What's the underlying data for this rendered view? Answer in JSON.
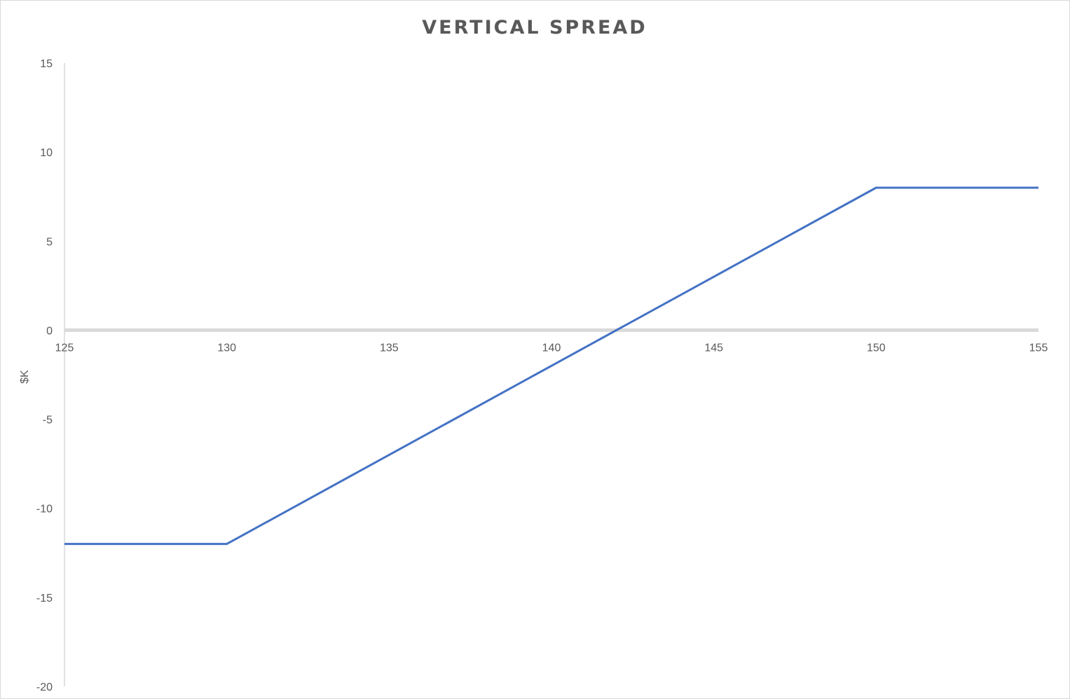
{
  "chart_data": {
    "type": "line",
    "title": "VERTICAL SPREAD",
    "xlabel": "",
    "ylabel": "$K",
    "xlim": [
      125,
      155
    ],
    "ylim": [
      -20,
      15
    ],
    "x_ticks": [
      "125",
      "130",
      "135",
      "140",
      "145",
      "150",
      "155"
    ],
    "y_ticks": [
      "15",
      "10",
      "5",
      "0",
      "-5",
      "-10",
      "-15",
      "-20"
    ],
    "grid": false,
    "legend": "none",
    "series": [
      {
        "x": [
          125,
          130,
          150,
          155
        ],
        "y": [
          -12,
          -12,
          8,
          8
        ],
        "color": "#4472c4"
      }
    ],
    "colors": {
      "line": "#4472c4",
      "zero_axis": "#d9d9d9",
      "value_axis": "#d9d9d9",
      "text": "#595959"
    }
  }
}
